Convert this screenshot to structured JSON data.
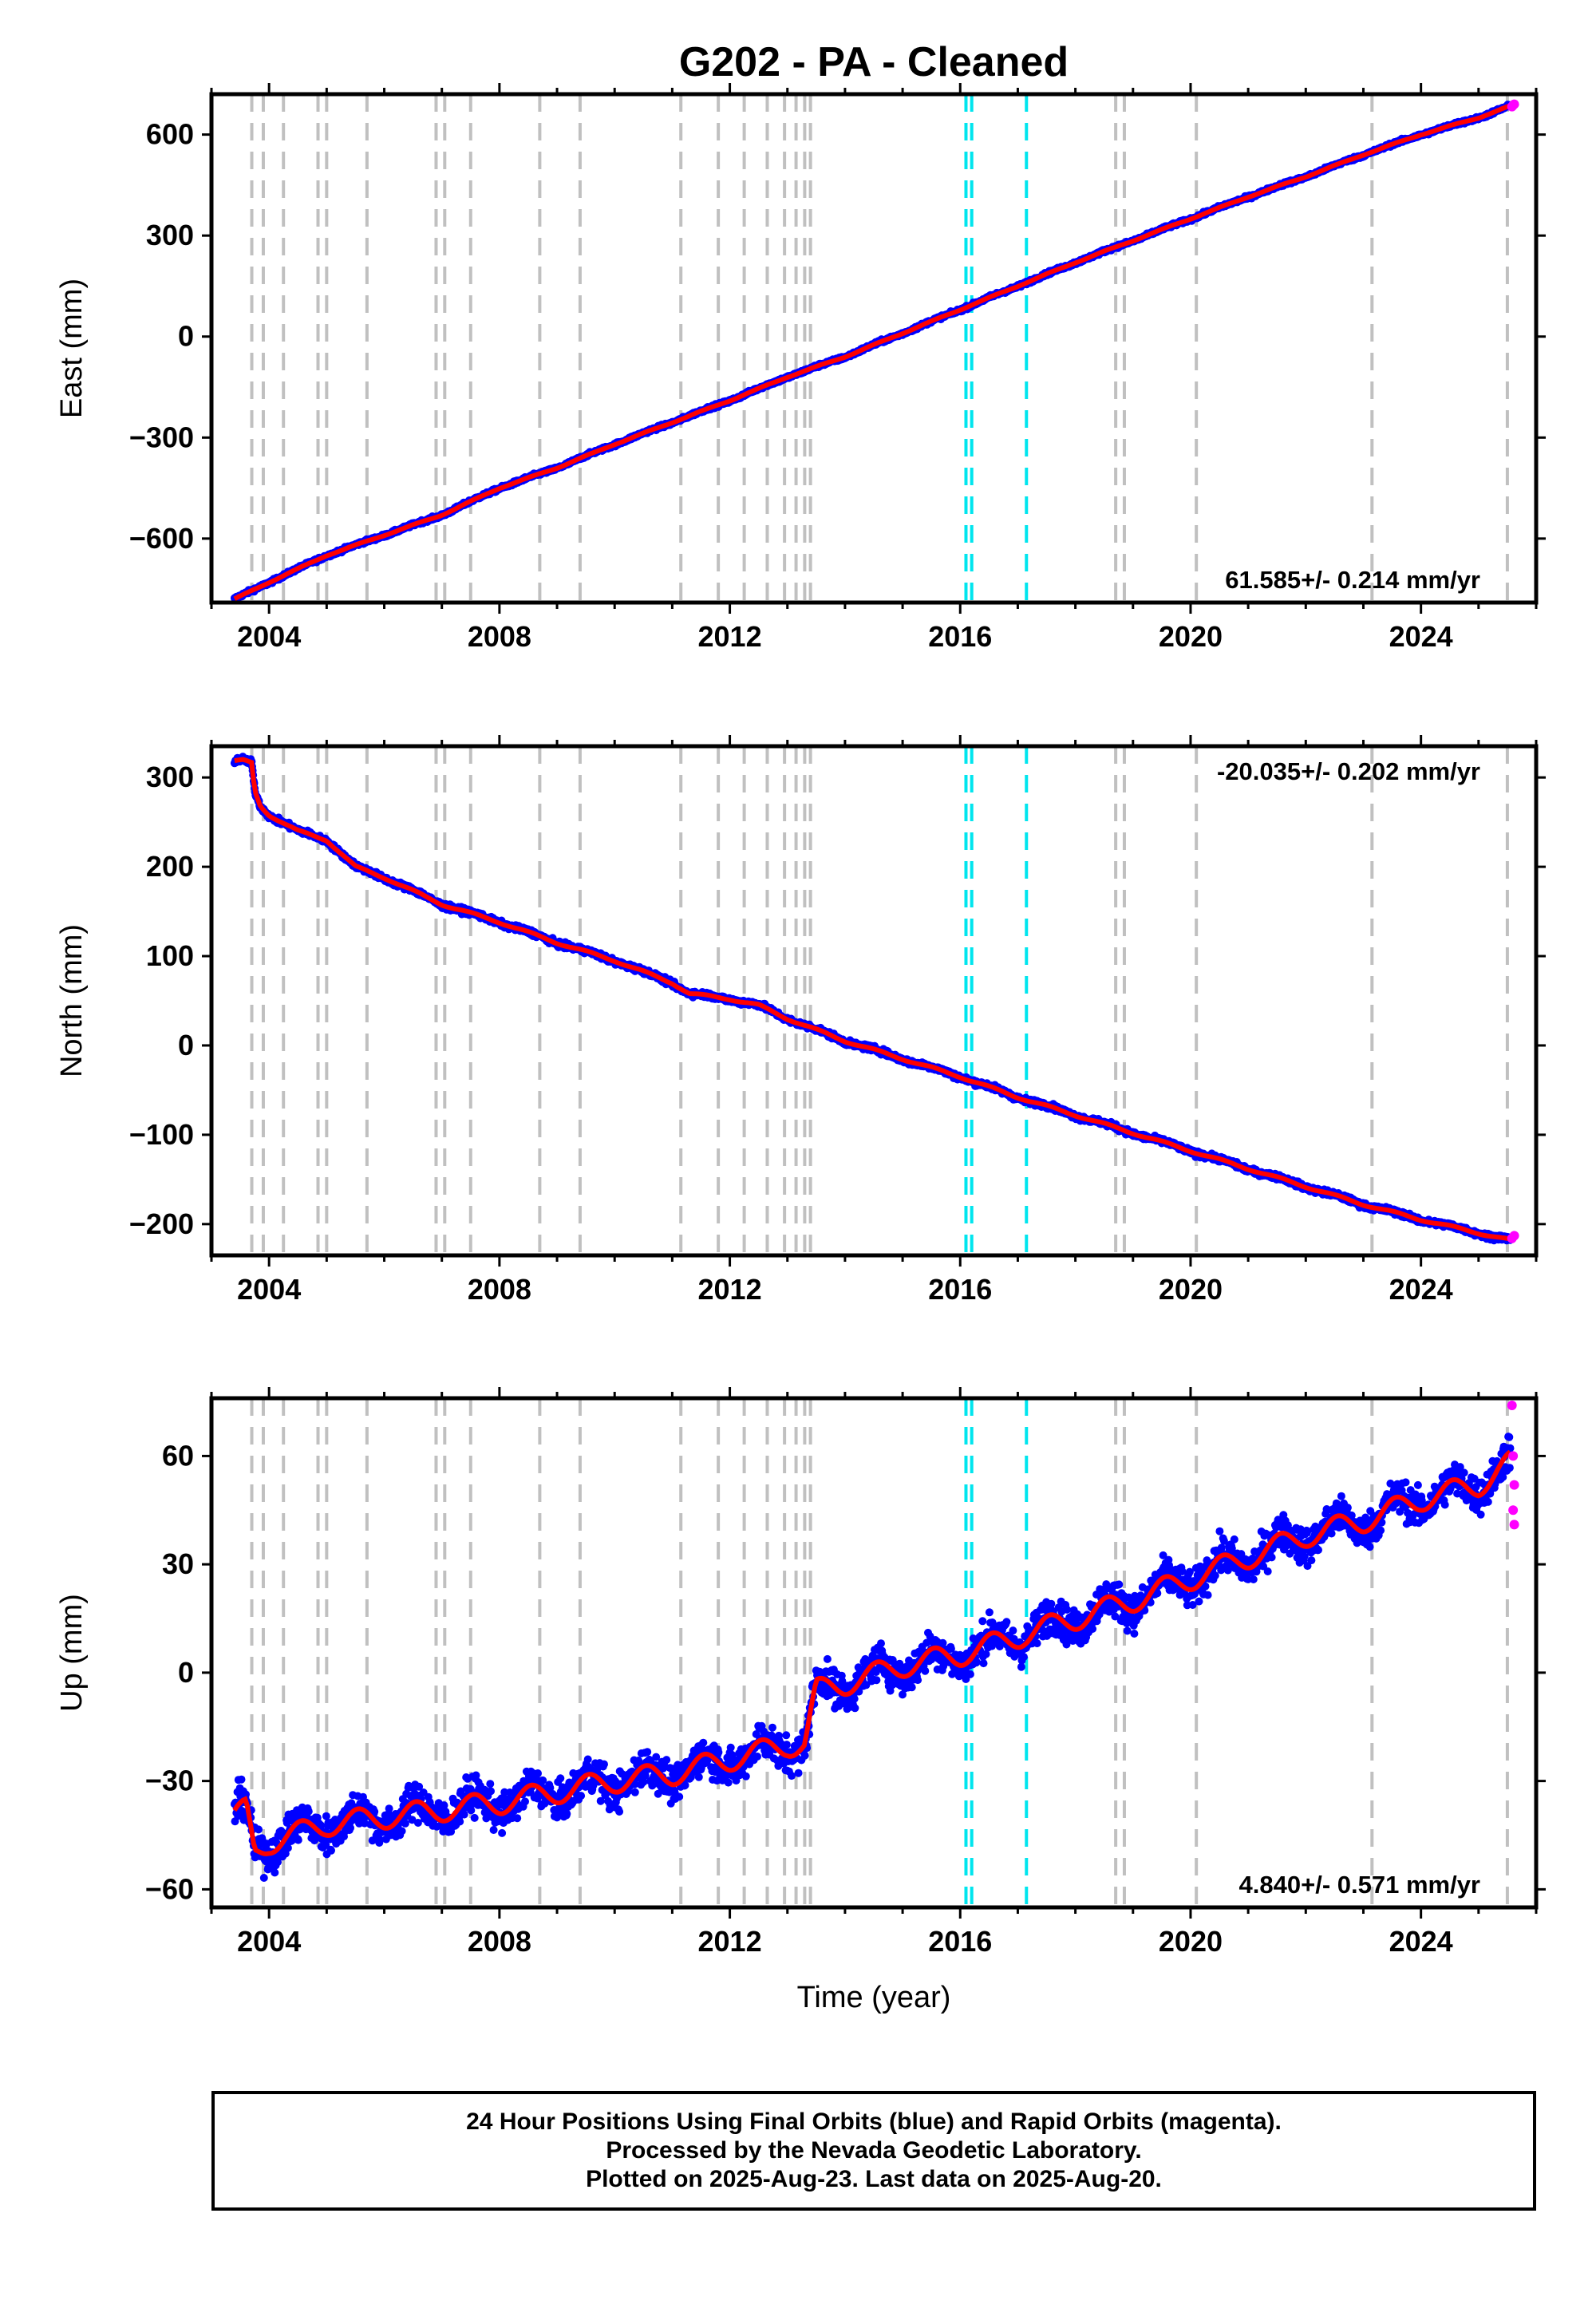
{
  "title": "G202  - PA - Cleaned",
  "xlabel": "Time (year)",
  "x_ticks": [
    2004,
    2008,
    2012,
    2016,
    2020,
    2024
  ],
  "xlim": [
    2003.0,
    2026.0
  ],
  "event_lines_gray": [
    2003.7,
    2003.9,
    2004.25,
    2004.85,
    2005.0,
    2005.7,
    2006.9,
    2007.05,
    2007.5,
    2008.7,
    2009.4,
    2011.15,
    2011.8,
    2012.25,
    2012.65,
    2012.95,
    2013.15,
    2013.3,
    2013.4,
    2018.7,
    2018.85,
    2020.1,
    2023.15,
    2025.5
  ],
  "event_lines_cyan": [
    2016.1,
    2016.2,
    2017.15
  ],
  "colors": {
    "final_orbits": "#0000ff",
    "rapid_orbits": "#ff00ff",
    "model": "#ff0000",
    "gray_event": "#c0c0c0",
    "cyan_event": "#00e5ee"
  },
  "chart_data": [
    {
      "type": "scatter",
      "component": "east",
      "ylabel": "East (mm)",
      "ylim": [
        -790,
        720
      ],
      "y_ticks": [
        -600,
        -300,
        0,
        300,
        600
      ],
      "rate_text": "61.585+/- 0.214 mm/yr",
      "rate_position": "bottom-right",
      "series": [
        {
          "name": "Final Orbits (blue)",
          "x": [
            2003.4,
            2004.0,
            2005.0,
            2006.0,
            2007.0,
            2008.0,
            2009.0,
            2010.0,
            2011.0,
            2012.0,
            2013.0,
            2014.0,
            2015.0,
            2016.0,
            2017.0,
            2018.0,
            2019.0,
            2020.0,
            2021.0,
            2022.0,
            2023.0,
            2024.0,
            2025.0,
            2025.55
          ],
          "y": [
            -780,
            -730,
            -650,
            -590,
            -530,
            -450,
            -390,
            -320,
            -255,
            -190,
            -120,
            -60,
            10,
            80,
            150,
            220,
            285,
            350,
            415,
            475,
            540,
            600,
            650,
            685
          ]
        },
        {
          "name": "Rapid Orbits (magenta)",
          "x": [
            2025.58,
            2025.6,
            2025.62
          ],
          "y": [
            683,
            687,
            690
          ]
        }
      ]
    },
    {
      "type": "scatter",
      "component": "north",
      "ylabel": "North (mm)",
      "ylim": [
        -235,
        335
      ],
      "y_ticks": [
        -200,
        -100,
        0,
        100,
        200,
        300
      ],
      "rate_text": "-20.035+/- 0.202 mm/yr",
      "rate_position": "top-right",
      "series": [
        {
          "name": "Final Orbits (blue)",
          "x": [
            2003.4,
            2003.55,
            2003.7,
            2003.75,
            2003.85,
            2004.0,
            2004.5,
            2005.0,
            2005.5,
            2006.0,
            2007.0,
            2008.0,
            2009.0,
            2010.0,
            2011.0,
            2011.3,
            2012.0,
            2012.5,
            2013.0,
            2014.0,
            2015.0,
            2016.0,
            2017.0,
            2018.0,
            2019.0,
            2020.0,
            2021.0,
            2022.0,
            2023.0,
            2024.0,
            2025.0,
            2025.55
          ],
          "y": [
            318,
            319,
            316,
            285,
            268,
            258,
            240,
            230,
            200,
            188,
            158,
            138,
            115,
            95,
            70,
            58,
            52,
            45,
            30,
            5,
            -15,
            -35,
            -58,
            -78,
            -98,
            -118,
            -138,
            -158,
            -178,
            -195,
            -210,
            -218
          ]
        },
        {
          "name": "Rapid Orbits (magenta)",
          "x": [
            2025.58,
            2025.62
          ],
          "y": [
            -216,
            -213
          ]
        }
      ]
    },
    {
      "type": "scatter",
      "component": "up",
      "ylabel": "Up (mm)",
      "ylim": [
        -65,
        76
      ],
      "y_ticks": [
        -60,
        -30,
        0,
        30,
        60
      ],
      "rate_text": "4.840+/- 0.571 mm/yr",
      "rate_position": "bottom-right",
      "series": [
        {
          "name": "Final Orbits (blue)",
          "x": [
            2003.4,
            2003.6,
            2003.75,
            2004.0,
            2005.0,
            2006.0,
            2007.0,
            2008.0,
            2009.0,
            2010.0,
            2011.0,
            2012.0,
            2013.0,
            2013.3,
            2013.5,
            2014.0,
            2015.0,
            2016.0,
            2017.0,
            2018.0,
            2019.0,
            2020.0,
            2021.0,
            2022.0,
            2023.0,
            2024.0,
            2025.0,
            2025.55
          ],
          "y": [
            -40,
            -38,
            -50,
            -47,
            -42,
            -40,
            -38,
            -36,
            -33,
            -30,
            -28,
            -24,
            -20,
            -20,
            -5,
            -3,
            2,
            5,
            10,
            15,
            20,
            26,
            32,
            38,
            42,
            48,
            52,
            58
          ]
        },
        {
          "name": "Rapid Orbits (magenta)",
          "x": [
            2025.58,
            2025.6,
            2025.62,
            2025.6,
            2025.62
          ],
          "y": [
            74,
            60,
            52,
            45,
            41
          ]
        }
      ]
    }
  ],
  "footer": {
    "line1": "24 Hour Positions Using Final Orbits (blue) and Rapid Orbits (magenta).",
    "line2": "Processed by the Nevada Geodetic Laboratory.",
    "line3": "Plotted on 2025-Aug-23. Last data on 2025-Aug-20."
  }
}
